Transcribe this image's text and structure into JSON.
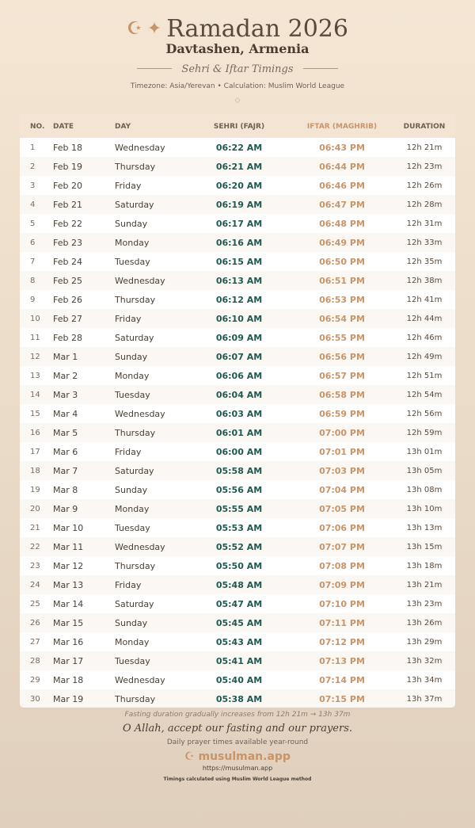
{
  "header": {
    "title": "Ramadan 2026",
    "location": "Davtashen, Armenia",
    "subtitle": "Sehri & Iftar Timings",
    "meta": "Timezone: Asia/Yerevan • Calculation: Muslim World League",
    "icons": [
      "crescent-icon",
      "star-icon"
    ]
  },
  "table": {
    "columns": [
      "NO.",
      "DATE",
      "DAY",
      "SEHRI (FAJR)",
      "IFTAR (MAGHRIB)",
      "DURATION"
    ],
    "rows": [
      [
        "1",
        "Feb 18",
        "Wednesday",
        "06:22 AM",
        "06:43 PM",
        "12h 21m"
      ],
      [
        "2",
        "Feb 19",
        "Thursday",
        "06:21 AM",
        "06:44 PM",
        "12h 23m"
      ],
      [
        "3",
        "Feb 20",
        "Friday",
        "06:20 AM",
        "06:46 PM",
        "12h 26m"
      ],
      [
        "4",
        "Feb 21",
        "Saturday",
        "06:19 AM",
        "06:47 PM",
        "12h 28m"
      ],
      [
        "5",
        "Feb 22",
        "Sunday",
        "06:17 AM",
        "06:48 PM",
        "12h 31m"
      ],
      [
        "6",
        "Feb 23",
        "Monday",
        "06:16 AM",
        "06:49 PM",
        "12h 33m"
      ],
      [
        "7",
        "Feb 24",
        "Tuesday",
        "06:15 AM",
        "06:50 PM",
        "12h 35m"
      ],
      [
        "8",
        "Feb 25",
        "Wednesday",
        "06:13 AM",
        "06:51 PM",
        "12h 38m"
      ],
      [
        "9",
        "Feb 26",
        "Thursday",
        "06:12 AM",
        "06:53 PM",
        "12h 41m"
      ],
      [
        "10",
        "Feb 27",
        "Friday",
        "06:10 AM",
        "06:54 PM",
        "12h 44m"
      ],
      [
        "11",
        "Feb 28",
        "Saturday",
        "06:09 AM",
        "06:55 PM",
        "12h 46m"
      ],
      [
        "12",
        "Mar 1",
        "Sunday",
        "06:07 AM",
        "06:56 PM",
        "12h 49m"
      ],
      [
        "13",
        "Mar 2",
        "Monday",
        "06:06 AM",
        "06:57 PM",
        "12h 51m"
      ],
      [
        "14",
        "Mar 3",
        "Tuesday",
        "06:04 AM",
        "06:58 PM",
        "12h 54m"
      ],
      [
        "15",
        "Mar 4",
        "Wednesday",
        "06:03 AM",
        "06:59 PM",
        "12h 56m"
      ],
      [
        "16",
        "Mar 5",
        "Thursday",
        "06:01 AM",
        "07:00 PM",
        "12h 59m"
      ],
      [
        "17",
        "Mar 6",
        "Friday",
        "06:00 AM",
        "07:01 PM",
        "13h 01m"
      ],
      [
        "18",
        "Mar 7",
        "Saturday",
        "05:58 AM",
        "07:03 PM",
        "13h 05m"
      ],
      [
        "19",
        "Mar 8",
        "Sunday",
        "05:56 AM",
        "07:04 PM",
        "13h 08m"
      ],
      [
        "20",
        "Mar 9",
        "Monday",
        "05:55 AM",
        "07:05 PM",
        "13h 10m"
      ],
      [
        "21",
        "Mar 10",
        "Tuesday",
        "05:53 AM",
        "07:06 PM",
        "13h 13m"
      ],
      [
        "22",
        "Mar 11",
        "Wednesday",
        "05:52 AM",
        "07:07 PM",
        "13h 15m"
      ],
      [
        "23",
        "Mar 12",
        "Thursday",
        "05:50 AM",
        "07:08 PM",
        "13h 18m"
      ],
      [
        "24",
        "Mar 13",
        "Friday",
        "05:48 AM",
        "07:09 PM",
        "13h 21m"
      ],
      [
        "25",
        "Mar 14",
        "Saturday",
        "05:47 AM",
        "07:10 PM",
        "13h 23m"
      ],
      [
        "26",
        "Mar 15",
        "Sunday",
        "05:45 AM",
        "07:11 PM",
        "13h 26m"
      ],
      [
        "27",
        "Mar 16",
        "Monday",
        "05:43 AM",
        "07:12 PM",
        "13h 29m"
      ],
      [
        "28",
        "Mar 17",
        "Tuesday",
        "05:41 AM",
        "07:13 PM",
        "13h 32m"
      ],
      [
        "29",
        "Mar 18",
        "Wednesday",
        "05:40 AM",
        "07:14 PM",
        "13h 34m"
      ],
      [
        "30",
        "Mar 19",
        "Thursday",
        "05:38 AM",
        "07:15 PM",
        "13h 37m"
      ]
    ]
  },
  "footer": {
    "note": "Fasting duration gradually increases from 12h 21m → 13h 37m",
    "dua": "O Allah, accept our fasting and our prayers.",
    "tagline": "Daily prayer times available year-round",
    "brand": "musulman.app",
    "url": "https://musulman.app",
    "method": "Timings calculated using Muslim World League method"
  },
  "colors": {
    "sehri": "#1e5a52",
    "iftar": "#c8946a"
  }
}
